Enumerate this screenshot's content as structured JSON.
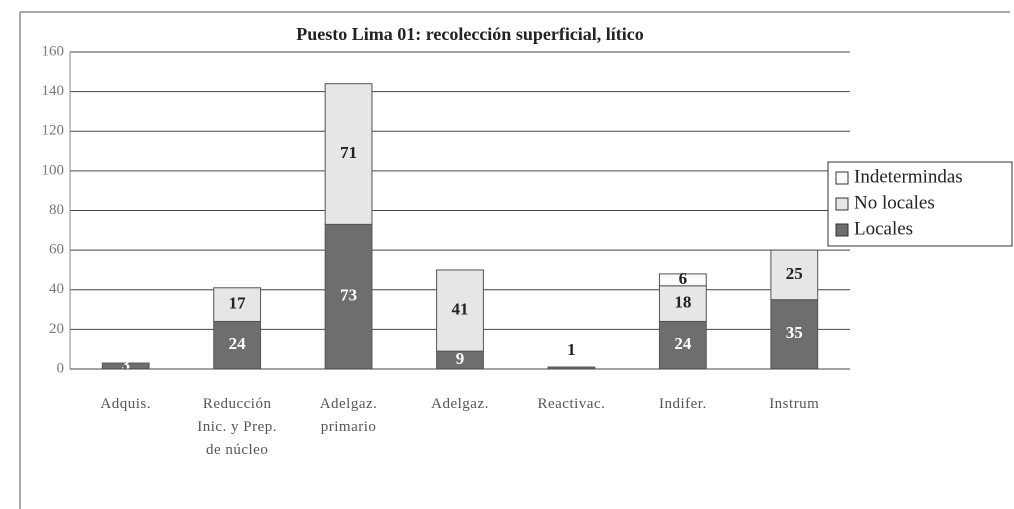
{
  "chart_data": {
    "type": "stacked_bar",
    "title": "Puesto Lima 01: recolección superficial, lítico",
    "categories": [
      "Adquis.",
      "Reducción Inic. y Prep. de núcleo",
      "Adelgaz. primario",
      "Adelgaz.",
      "Reactivac.",
      "Indifer.",
      "Instrum"
    ],
    "series": [
      {
        "name": "Locales",
        "color": "#6e6e6e",
        "values": [
          3,
          24,
          73,
          9,
          1,
          24,
          35
        ]
      },
      {
        "name": "No locales",
        "color": "#e6e6e6",
        "values": [
          null,
          17,
          71,
          41,
          null,
          18,
          25
        ]
      },
      {
        "name": "Indetermindas",
        "color": "#fbfbfb",
        "values": [
          null,
          null,
          null,
          null,
          null,
          6,
          null
        ]
      }
    ],
    "ylim": [
      0,
      160
    ],
    "yticks": [
      0,
      20,
      40,
      60,
      80,
      100,
      120,
      140,
      160
    ],
    "grid": true,
    "legend": "right"
  }
}
